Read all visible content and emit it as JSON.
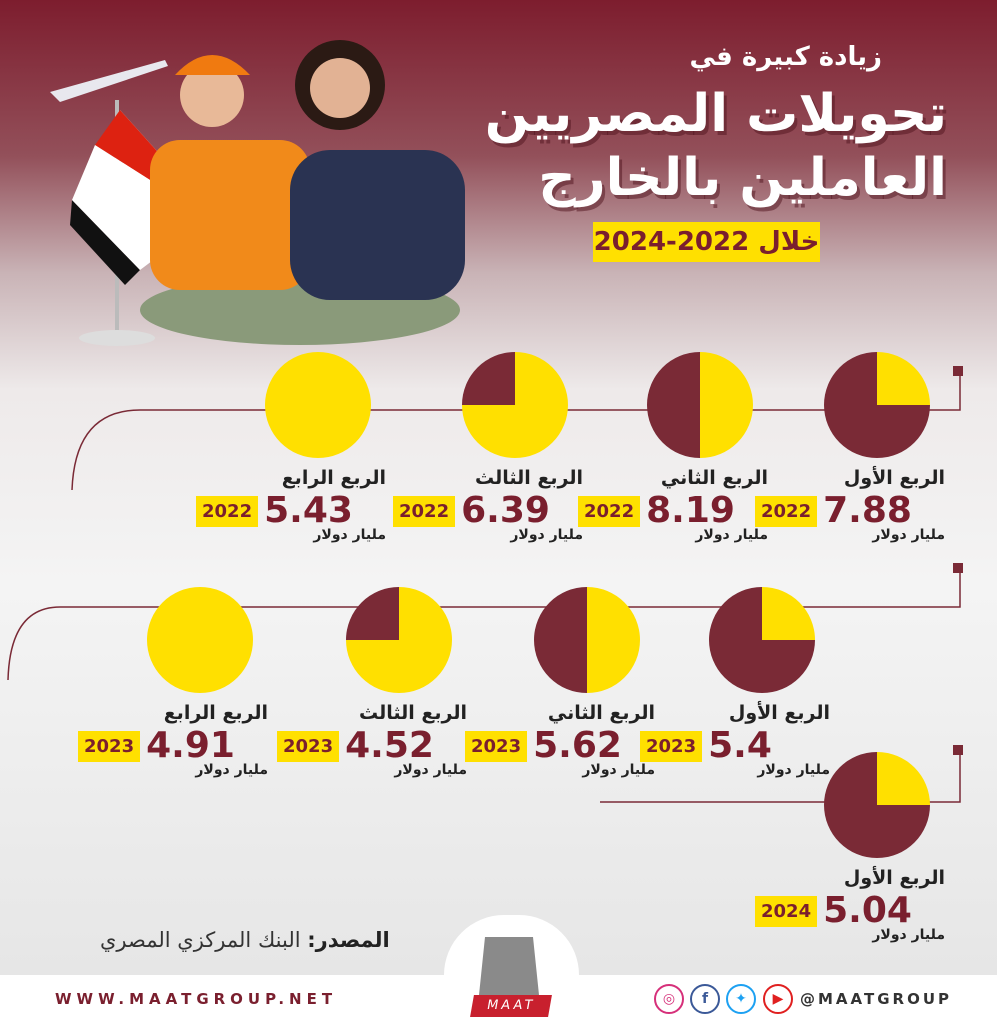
{
  "header": {
    "subtitle": "زيادة كبيرة في",
    "title_line1": "تحويلات المصريين",
    "title_line2": "العاملين بالخارج",
    "period": "خلال 2022-2024"
  },
  "colors": {
    "maroon": "#7a1f2e",
    "yellow": "#ffe000",
    "pie_dark": "#7a2a36"
  },
  "unit": "مليار دولار",
  "quarters": [
    {
      "label": "الربع الأول",
      "year": "2022",
      "value": "7.88",
      "quarter_fill": 0.25
    },
    {
      "label": "الربع الثاني",
      "year": "2022",
      "value": "8.19",
      "quarter_fill": 0.5
    },
    {
      "label": "الربع الثالث",
      "year": "2022",
      "value": "6.39",
      "quarter_fill": 0.75
    },
    {
      "label": "الربع الرابع",
      "year": "2022",
      "value": "5.43",
      "quarter_fill": 1
    },
    {
      "label": "الربع الأول",
      "year": "2023",
      "value": "5.4",
      "quarter_fill": 0.25
    },
    {
      "label": "الربع الثاني",
      "year": "2023",
      "value": "5.62",
      "quarter_fill": 0.5
    },
    {
      "label": "الربع الثالث",
      "year": "2023",
      "value": "4.52",
      "quarter_fill": 0.75
    },
    {
      "label": "الربع الرابع",
      "year": "2023",
      "value": "4.91",
      "quarter_fill": 1
    },
    {
      "label": "الربع الأول",
      "year": "2024",
      "value": "5.04",
      "quarter_fill": 0.25
    }
  ],
  "footer": {
    "source_label": "المصدر:",
    "source": "البنك المركزي المصري",
    "website": "WWW.MAATGROUP.NET",
    "handle": "@MAATGROUP",
    "logo_text": "MAAT",
    "social_icons": [
      "instagram-icon",
      "facebook-icon",
      "twitter-icon",
      "youtube-icon"
    ]
  }
}
